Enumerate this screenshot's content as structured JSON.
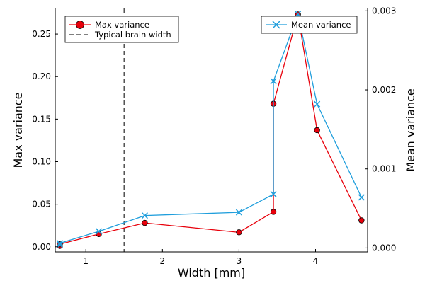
{
  "chart_data": {
    "type": "line",
    "title": "",
    "xlabel": "Width [mm]",
    "ylabel_left": "Max variance",
    "ylabel_right": "Mean variance",
    "xlim": [
      0.6,
      4.68
    ],
    "ylim_left": [
      -0.006,
      0.28
    ],
    "ylim_right": [
      -5e-05,
      0.00303
    ],
    "x_ticks": [
      1,
      2,
      3,
      4
    ],
    "y_left_ticks": [
      "0.00",
      "0.05",
      "0.10",
      "0.15",
      "0.20",
      "0.25"
    ],
    "y_right_ticks": [
      "0.000",
      "0.001",
      "0.002",
      "0.003"
    ],
    "grid": false,
    "x": [
      0.66,
      0.66,
      1.17,
      1.77,
      3.0,
      3.45,
      3.45,
      3.77,
      4.02,
      4.6
    ],
    "series": [
      {
        "name": "Max variance",
        "axis": "left",
        "color": "#e8000b",
        "marker": "circle",
        "values": [
          0.001,
          0.003,
          0.015,
          0.028,
          0.017,
          0.041,
          0.168,
          0.273,
          0.137,
          0.031
        ]
      },
      {
        "name": "Mean variance",
        "axis": "right",
        "color": "#1f9edc",
        "marker": "x",
        "values": [
          4e-05,
          6e-05,
          0.00021,
          0.00041,
          0.00045,
          0.00068,
          0.00211,
          0.00296,
          0.00182,
          0.00064
        ]
      }
    ],
    "reference_line": {
      "name": "Typical brain width",
      "x": 1.5,
      "color": "#555555",
      "style": "dashed"
    },
    "legend_left": "top-left",
    "legend_right": "top-right"
  }
}
